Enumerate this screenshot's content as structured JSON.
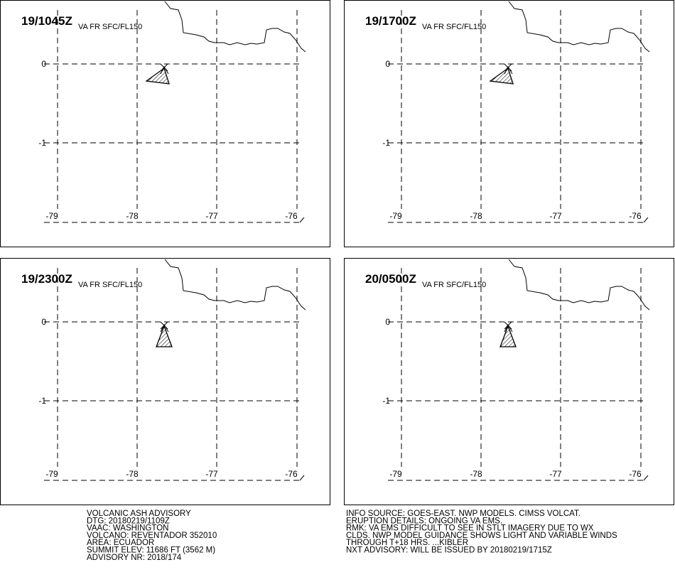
{
  "panels": [
    {
      "title": "19/1045Z",
      "subtitle": "VA FR SFC/FL150",
      "shape": "west"
    },
    {
      "title": "19/1700Z",
      "subtitle": "VA FR SFC/FL150",
      "shape": "west"
    },
    {
      "title": "19/2300Z",
      "subtitle": "VA FR SFC/FL150",
      "shape": "south"
    },
    {
      "title": "20/0500Z",
      "subtitle": "VA FR SFC/FL150",
      "shape": "south"
    }
  ],
  "axes": {
    "lon_ticks": [
      "-79",
      "-78",
      "-77",
      "-76"
    ],
    "lat_ticks": [
      "0",
      "-1"
    ]
  },
  "advisory_left": [
    "VOLCANIC ASH ADVISORY",
    "DTG: 20180219/1109Z",
    "VAAC: WASHINGTON",
    "VOLCANO: REVENTADOR 352010",
    "AREA: ECUADOR",
    "SUMMIT ELEV: 11686 FT (3562 M)",
    "ADVISORY NR: 2018/174"
  ],
  "advisory_right": [
    "INFO SOURCE: GOES-EAST. NWP MODELS. CIMSS VOLCAT.",
    "ERUPTION DETAILS: ONGOING VA EMS.",
    "RMK: VA EMS DIFFICULT TO SEE IN STLT IMAGERY DUE TO WX",
    "CLDS. NWP MODEL GUIDANCE SHOWS LIGHT AND VARIABLE WINDS",
    "THROUGH T+18 HRS. ...KIBLER",
    "NXT ADVISORY: WILL BE ISSUED BY 20180219/1715Z"
  ]
}
